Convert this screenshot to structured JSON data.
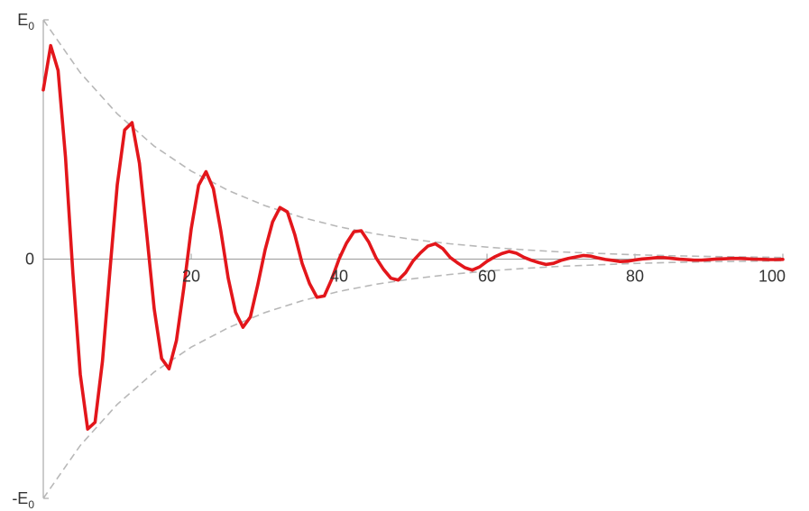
{
  "chart_data": {
    "type": "line",
    "title": "",
    "xlabel": "",
    "ylabel": "",
    "xlim": [
      0,
      100
    ],
    "ylim": [
      -1,
      1
    ],
    "x_ticks": [
      {
        "value": 20,
        "label": "20"
      },
      {
        "value": 40,
        "label": "40"
      },
      {
        "value": 60,
        "label": "60"
      },
      {
        "value": 80,
        "label": "80"
      },
      {
        "value": 100,
        "label": "100"
      }
    ],
    "y_ticks": [
      {
        "value": 1,
        "label": "E",
        "sub": "0"
      },
      {
        "value": 0,
        "label": "0",
        "sub": ""
      },
      {
        "value": -1,
        "label": "-E",
        "sub": "0"
      }
    ],
    "grid": false,
    "legend": "none",
    "colors": {
      "signal": "#e3161b",
      "envelope": "#b8b8b8",
      "axis": "#9a9a9a"
    },
    "series": [
      {
        "style": "solid",
        "color": "#e3161b",
        "x": [
          0,
          1,
          2,
          3,
          4,
          5,
          6,
          7,
          8,
          9,
          10,
          11,
          12,
          13,
          14,
          15,
          16,
          17,
          18,
          19,
          20,
          21,
          22,
          23,
          24,
          25,
          26,
          27,
          28,
          29,
          30,
          31,
          32,
          33,
          34,
          35,
          36,
          37,
          38,
          39,
          40,
          41,
          42,
          43,
          44,
          45,
          46,
          47,
          48,
          49,
          50,
          51,
          52,
          53,
          54,
          55,
          56,
          57,
          58,
          59,
          60,
          61,
          62,
          63,
          64,
          65,
          66,
          67,
          68,
          69,
          70,
          71,
          72,
          73,
          74,
          75,
          76,
          77,
          78,
          79,
          80,
          81,
          82,
          83,
          84,
          85,
          86,
          87,
          88,
          89,
          90,
          91,
          92,
          93,
          94,
          95,
          96,
          97,
          98,
          99,
          100
        ],
        "y": [
          0.7071,
          0.8922,
          0.7886,
          0.427,
          -0.0578,
          -0.4819,
          -0.7104,
          -0.6818,
          -0.4271,
          -0.0516,
          0.3101,
          0.5395,
          0.5703,
          0.401,
          0.1017,
          -0.2087,
          -0.4155,
          -0.4585,
          -0.3408,
          -0.1205,
          0.1262,
          0.3083,
          0.3653,
          0.2939,
          0.1189,
          -0.079,
          -0.222,
          -0.2849,
          -0.2417,
          -0.1076,
          0.0396,
          0.155,
          0.2155,
          0.1975,
          0.1031,
          -0.0177,
          -0.1021,
          -0.1596,
          -0.1539,
          -0.0844,
          0.001,
          0.067,
          0.1145,
          0.1183,
          0.0715,
          0.0049,
          -0.0426,
          -0.0798,
          -0.0876,
          -0.0563,
          -0.0077,
          0.0262,
          0.0543,
          0.064,
          0.0444,
          0.0075,
          -0.0154,
          -0.0358,
          -0.046,
          -0.0325,
          -0.009,
          0.0088,
          0.023,
          0.0322,
          0.0243,
          0.0073,
          -0.005,
          -0.0147,
          -0.0224,
          -0.0177,
          -0.0053,
          0.0027,
          0.009,
          0.0152,
          0.0125,
          0.0049,
          -0.0013,
          -0.0054,
          -0.01,
          -0.0088,
          -0.0035,
          0.0006,
          0.0032,
          0.0064,
          0.0061,
          0.003,
          -0.0003,
          -0.0019,
          -0.0042,
          -0.0042,
          -0.0021,
          0.0001,
          0.0011,
          0.0027,
          0.0029,
          0.0016,
          0.0,
          -0.0006,
          -0.0017,
          -0.0019,
          -0.001
        ]
      },
      {
        "style": "dashed",
        "color": "#b8b8b8",
        "x": [
          0,
          5,
          10,
          15,
          20,
          25,
          30,
          35,
          40,
          45,
          50,
          55,
          60,
          65,
          70,
          75,
          80,
          85,
          90,
          95,
          100
        ],
        "y": [
          1.0,
          0.779,
          0.607,
          0.472,
          0.368,
          0.287,
          0.223,
          0.174,
          0.135,
          0.105,
          0.082,
          0.064,
          0.05,
          0.039,
          0.03,
          0.024,
          0.018,
          0.014,
          0.011,
          0.009,
          0.007
        ]
      },
      {
        "style": "dashed",
        "color": "#b8b8b8",
        "x": [
          0,
          5,
          10,
          15,
          20,
          25,
          30,
          35,
          40,
          45,
          50,
          55,
          60,
          65,
          70,
          75,
          80,
          85,
          90,
          95,
          100
        ],
        "y": [
          -1.0,
          -0.779,
          -0.607,
          -0.472,
          -0.368,
          -0.287,
          -0.223,
          -0.174,
          -0.135,
          -0.105,
          -0.082,
          -0.064,
          -0.05,
          -0.039,
          -0.03,
          -0.024,
          -0.018,
          -0.014,
          -0.011,
          -0.009,
          -0.007
        ]
      }
    ]
  }
}
